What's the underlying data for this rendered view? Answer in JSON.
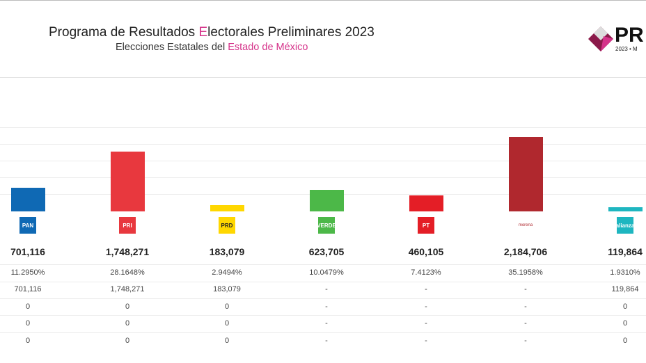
{
  "header": {
    "title_pre": "Programa de Resultados ",
    "title_accent": "E",
    "title_post": "lectorales Preliminares 2023",
    "subtitle_pre": "Elecciones Estatales del ",
    "subtitle_accent": "Estado de México",
    "logo_text": "PR",
    "logo_year": "2023 • M"
  },
  "parties": [
    {
      "name": "PAN",
      "emblem": "PAN",
      "color": "#0F69B4",
      "votes": "701,116",
      "votes_n": 701116,
      "pct": "11.2950%",
      "rows": [
        "701,116",
        "0",
        "0",
        "0"
      ]
    },
    {
      "name": "PRI",
      "emblem": "PRI",
      "color": "#E8383E",
      "votes": "1,748,271",
      "votes_n": 1748271,
      "pct": "28.1648%",
      "rows": [
        "1,748,271",
        "0",
        "0",
        "0"
      ]
    },
    {
      "name": "PRD",
      "emblem": "PRD",
      "color": "#FFD700",
      "votes": "183,079",
      "votes_n": 183079,
      "pct": "2.9494%",
      "rows": [
        "183,079",
        "0",
        "0",
        "0"
      ]
    },
    {
      "name": "VERDE",
      "emblem": "VERDE",
      "color": "#4CB848",
      "votes": "623,705",
      "votes_n": 623705,
      "pct": "10.0479%",
      "rows": [
        "-",
        "-",
        "-",
        "-"
      ]
    },
    {
      "name": "PT",
      "emblem": "PT",
      "color": "#E41E26",
      "votes": "460,105",
      "votes_n": 460105,
      "pct": "7.4123%",
      "rows": [
        "-",
        "-",
        "-",
        "-"
      ]
    },
    {
      "name": "morena",
      "emblem": "morena",
      "color": "#B0282E",
      "votes": "2,184,706",
      "votes_n": 2184706,
      "pct": "35.1958%",
      "rows": [
        "-",
        "-",
        "-",
        "-"
      ]
    },
    {
      "name": "alianza",
      "emblem": "alianza",
      "color": "#1EB6C0",
      "votes": "119,864",
      "votes_n": 119864,
      "pct": "1.9310%",
      "rows": [
        "119,864",
        "0",
        "0",
        "0"
      ]
    }
  ]
}
